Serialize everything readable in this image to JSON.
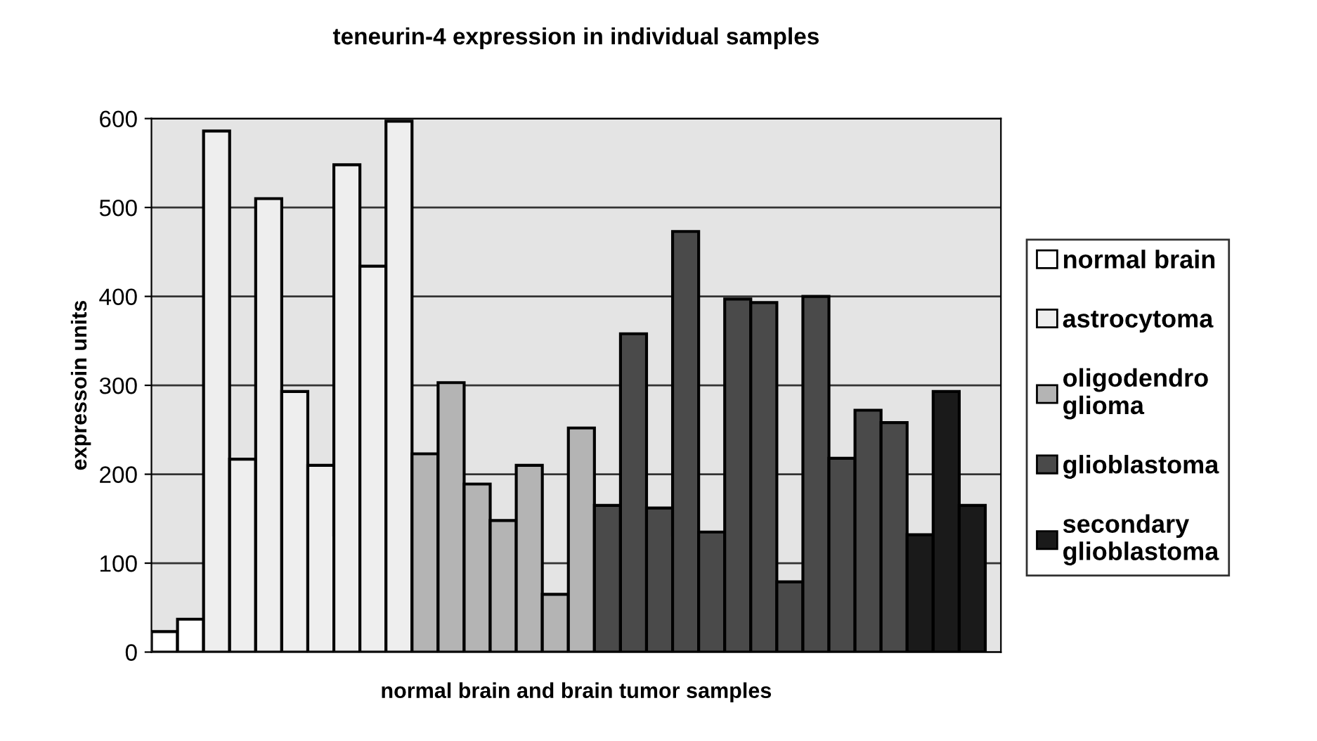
{
  "chart_data": {
    "type": "bar",
    "title": "teneurin-4 expression in individual samples",
    "xlabel": "normal brain and brain tumor samples",
    "ylabel": "expressoin units",
    "categories": [
      null,
      null,
      null,
      null,
      null,
      null,
      null,
      null,
      null,
      null,
      null,
      null,
      null,
      null,
      null,
      null,
      null,
      null,
      null,
      null,
      null,
      null,
      null,
      null,
      null,
      null,
      null,
      null,
      null,
      null,
      null,
      null
    ],
    "series": [
      {
        "name": "normal brain",
        "color": "#ffffff",
        "values": [
          23,
          37,
          null,
          null,
          null,
          null,
          null,
          null,
          null,
          null,
          null,
          null,
          null,
          null,
          null,
          null,
          null,
          null,
          null,
          null,
          null,
          null,
          null,
          null,
          null,
          null,
          null,
          null,
          null,
          null,
          null,
          null
        ]
      },
      {
        "name": "astrocytoma",
        "color": "#eeeeee",
        "values": [
          null,
          null,
          586,
          217,
          510,
          293,
          210,
          548,
          434,
          597,
          null,
          null,
          null,
          null,
          null,
          null,
          null,
          null,
          null,
          null,
          null,
          null,
          null,
          null,
          null,
          null,
          null,
          null,
          null,
          null,
          null,
          null
        ]
      },
      {
        "name": "oligodendro\nglioma",
        "color": "#b4b4b4",
        "values": [
          null,
          null,
          null,
          null,
          null,
          null,
          null,
          null,
          null,
          null,
          223,
          303,
          189,
          148,
          210,
          65,
          252,
          null,
          null,
          null,
          null,
          null,
          null,
          null,
          null,
          null,
          null,
          null,
          null,
          null,
          null,
          null
        ]
      },
      {
        "name": "glioblastoma",
        "color": "#4a4a4a",
        "values": [
          null,
          null,
          null,
          null,
          null,
          null,
          null,
          null,
          null,
          null,
          null,
          null,
          null,
          null,
          null,
          null,
          null,
          165,
          358,
          162,
          473,
          135,
          397,
          393,
          79,
          400,
          218,
          272,
          258,
          null,
          null,
          null
        ]
      },
      {
        "name": "secondary\nglioblastoma",
        "color": "#1a1a1a",
        "values": [
          null,
          null,
          null,
          null,
          null,
          null,
          null,
          null,
          null,
          null,
          null,
          null,
          null,
          null,
          null,
          null,
          null,
          null,
          null,
          null,
          null,
          null,
          null,
          null,
          null,
          null,
          null,
          null,
          null,
          132,
          293,
          165
        ]
      }
    ],
    "ylim": [
      0,
      600
    ],
    "yticks": [
      0,
      100,
      200,
      300,
      400,
      500,
      600
    ],
    "grid": "y",
    "legend": "right",
    "stacked": true
  }
}
